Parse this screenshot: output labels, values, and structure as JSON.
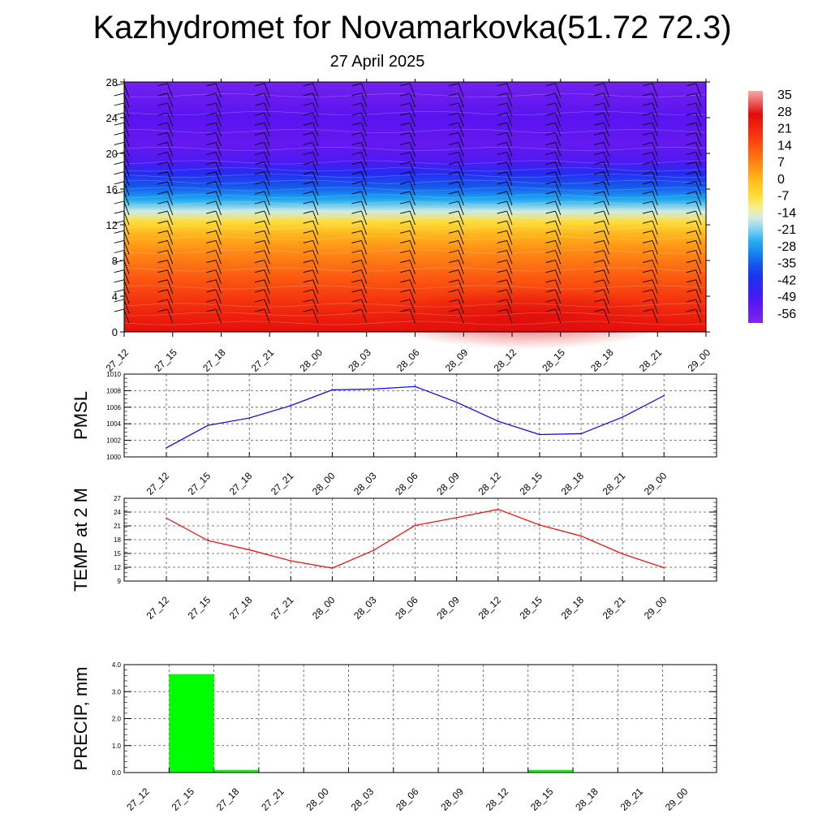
{
  "header": {
    "title": "Kazhydromet for Novamarkovka(51.72 72.3)",
    "subtitle": "27 April 2025"
  },
  "colors": {
    "pmsl_line": "#0000ff",
    "temp_line": "#ff0000",
    "precip_bar": "#00ff00",
    "grid": "#555555"
  },
  "time_labels": [
    "27_12",
    "27_15",
    "27_18",
    "27_21",
    "28_00",
    "28_03",
    "28_06",
    "28_09",
    "28_12",
    "28_15",
    "28_18",
    "28_21",
    "29_00"
  ],
  "chart_data": [
    {
      "type": "heatmap",
      "name": "cross-section",
      "x": [
        "27_12",
        "27_15",
        "27_18",
        "27_21",
        "28_00",
        "28_03",
        "28_06",
        "28_09",
        "28_12",
        "28_15",
        "28_18",
        "28_21",
        "29_00"
      ],
      "ylim": [
        0,
        28
      ],
      "yticks": [
        0,
        4,
        8,
        12,
        16,
        20,
        24,
        28
      ],
      "colorbar": {
        "labels": [
          "35",
          "28",
          "21",
          "14",
          "7",
          "0",
          "-7",
          "-14",
          "-21",
          "-28",
          "-35",
          "-42",
          "-49",
          "-56"
        ],
        "range": [
          -60,
          38
        ]
      },
      "wind_barbs": true
    },
    {
      "type": "line",
      "ylabel": "PMSL",
      "categories": [
        "27_12",
        "27_15",
        "27_18",
        "27_21",
        "28_00",
        "28_03",
        "28_06",
        "28_09",
        "28_12",
        "28_15",
        "28_18",
        "28_21",
        "29_00"
      ],
      "values": [
        1001.1,
        1003.8,
        1004.7,
        1006.2,
        1008.1,
        1008.2,
        1008.5,
        1006.6,
        1004.3,
        1002.7,
        1002.8,
        1004.8,
        1007.4
      ],
      "ylim": [
        1000,
        1010
      ],
      "yticks": [
        1000,
        1002,
        1004,
        1006,
        1008,
        1010
      ],
      "grid": true
    },
    {
      "type": "line",
      "ylabel": "TEMP at 2 M",
      "categories": [
        "27_12",
        "27_15",
        "27_18",
        "27_21",
        "28_00",
        "28_03",
        "28_06",
        "28_09",
        "28_12",
        "28_15",
        "28_18",
        "28_21",
        "29_00"
      ],
      "values": [
        22.7,
        17.8,
        15.8,
        13.4,
        11.8,
        15.7,
        21.1,
        22.8,
        24.6,
        21.2,
        18.8,
        14.9,
        11.9
      ],
      "ylim": [
        9,
        27
      ],
      "yticks": [
        9,
        12,
        15,
        18,
        21,
        24,
        27
      ],
      "grid": true
    },
    {
      "type": "bar",
      "ylabel": "PRECIP, mm",
      "categories": [
        "27_12",
        "27_15",
        "27_18",
        "27_21",
        "28_00",
        "28_03",
        "28_06",
        "28_09",
        "28_12",
        "28_15",
        "28_18",
        "28_21",
        "29_00"
      ],
      "values": [
        0,
        3.65,
        0.1,
        0,
        0,
        0,
        0,
        0,
        0,
        0.1,
        0,
        0,
        0
      ],
      "ylim": [
        0,
        4
      ],
      "yticks": [
        "0.0",
        "1.0",
        "2.0",
        "3.0",
        "4.0"
      ],
      "grid": true
    }
  ]
}
